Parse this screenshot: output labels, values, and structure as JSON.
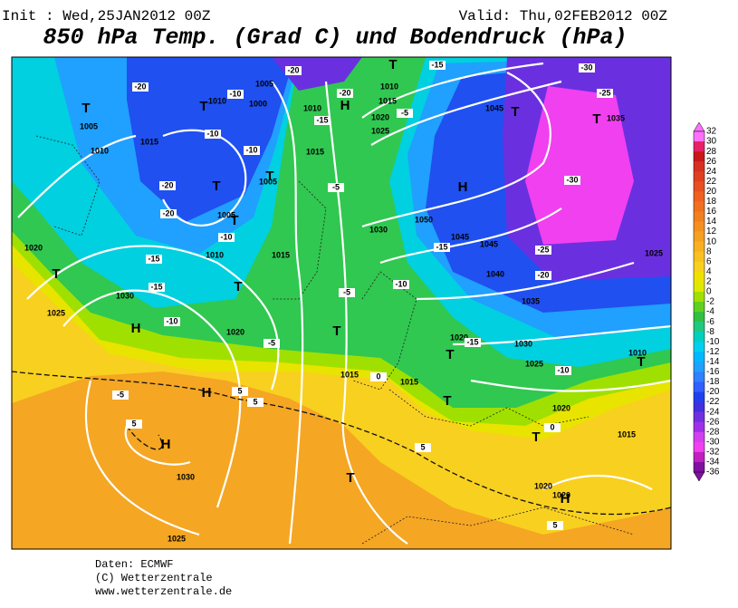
{
  "header": {
    "init": "Init : Wed,25JAN2012 00Z",
    "valid": "Valid: Thu,02FEB2012 00Z",
    "title": "850 hPa Temp. (Grad C) und Bodendruck (hPa)"
  },
  "map": {
    "isobar_labels": [
      "1005",
      "1010",
      "1015",
      "1010",
      "1005",
      "1000",
      "1010",
      "1015",
      "1005",
      "1005",
      "1010",
      "1015",
      "1020",
      "1030",
      "1025",
      "1020",
      "1015",
      "1015",
      "1030",
      "1045",
      "1045",
      "1050",
      "1040",
      "1035",
      "1030",
      "1025",
      "1020",
      "1020",
      "1015",
      "1010",
      "1025",
      "1020",
      "1025",
      "1015",
      "1010",
      "1045",
      "1035",
      "1030",
      "1025",
      "1020",
      "1020"
    ],
    "temperature_labels": [
      "-20",
      "-10",
      "-10",
      "-20",
      "-20",
      "-15",
      "-15",
      "-10",
      "-10",
      "-5",
      "-5",
      "-10",
      "-15",
      "-15",
      "-20",
      "-25",
      "-30",
      "-25",
      "-30",
      "-20",
      "-15",
      "-15",
      "-5",
      "-5",
      "-10",
      "0",
      "0",
      "5",
      "-5",
      "5",
      "5",
      "5",
      "5",
      "-20",
      "-10"
    ],
    "pressure_centers": [
      "T",
      "T",
      "T",
      "T",
      "T",
      "T",
      "T",
      "H",
      "H",
      "H",
      "T",
      "T",
      "H",
      "T",
      "T",
      "H",
      "T",
      "T",
      "T",
      "T",
      "H",
      "T"
    ]
  },
  "colorbar": {
    "labels": [
      32,
      30,
      28,
      26,
      24,
      22,
      20,
      18,
      16,
      14,
      12,
      10,
      8,
      6,
      4,
      2,
      0,
      -2,
      -4,
      -6,
      -8,
      -10,
      -12,
      -14,
      -16,
      -18,
      -20,
      -22,
      -24,
      -26,
      -28,
      -30,
      -32,
      -34,
      -36
    ],
    "colors": [
      "#ff70ff",
      "#e8206a",
      "#c81818",
      "#d83020",
      "#e04020",
      "#e85020",
      "#f06020",
      "#f07020",
      "#f08020",
      "#f59020",
      "#f5a020",
      "#f8b020",
      "#f8c020",
      "#f8d020",
      "#f0e000",
      "#e0e800",
      "#a0e000",
      "#60d020",
      "#30c040",
      "#20c880",
      "#00d0c0",
      "#00d0f0",
      "#00b8ff",
      "#20a0ff",
      "#3080ff",
      "#3060ff",
      "#2040f0",
      "#4030e0",
      "#7030e0",
      "#a030e8",
      "#d040f0",
      "#f040f0",
      "#c020c0",
      "#8010a0"
    ]
  },
  "footer": {
    "lines": [
      "Daten: ECMWF",
      "(C) Wetterzentrale",
      "www.wetterzentrale.de"
    ]
  }
}
